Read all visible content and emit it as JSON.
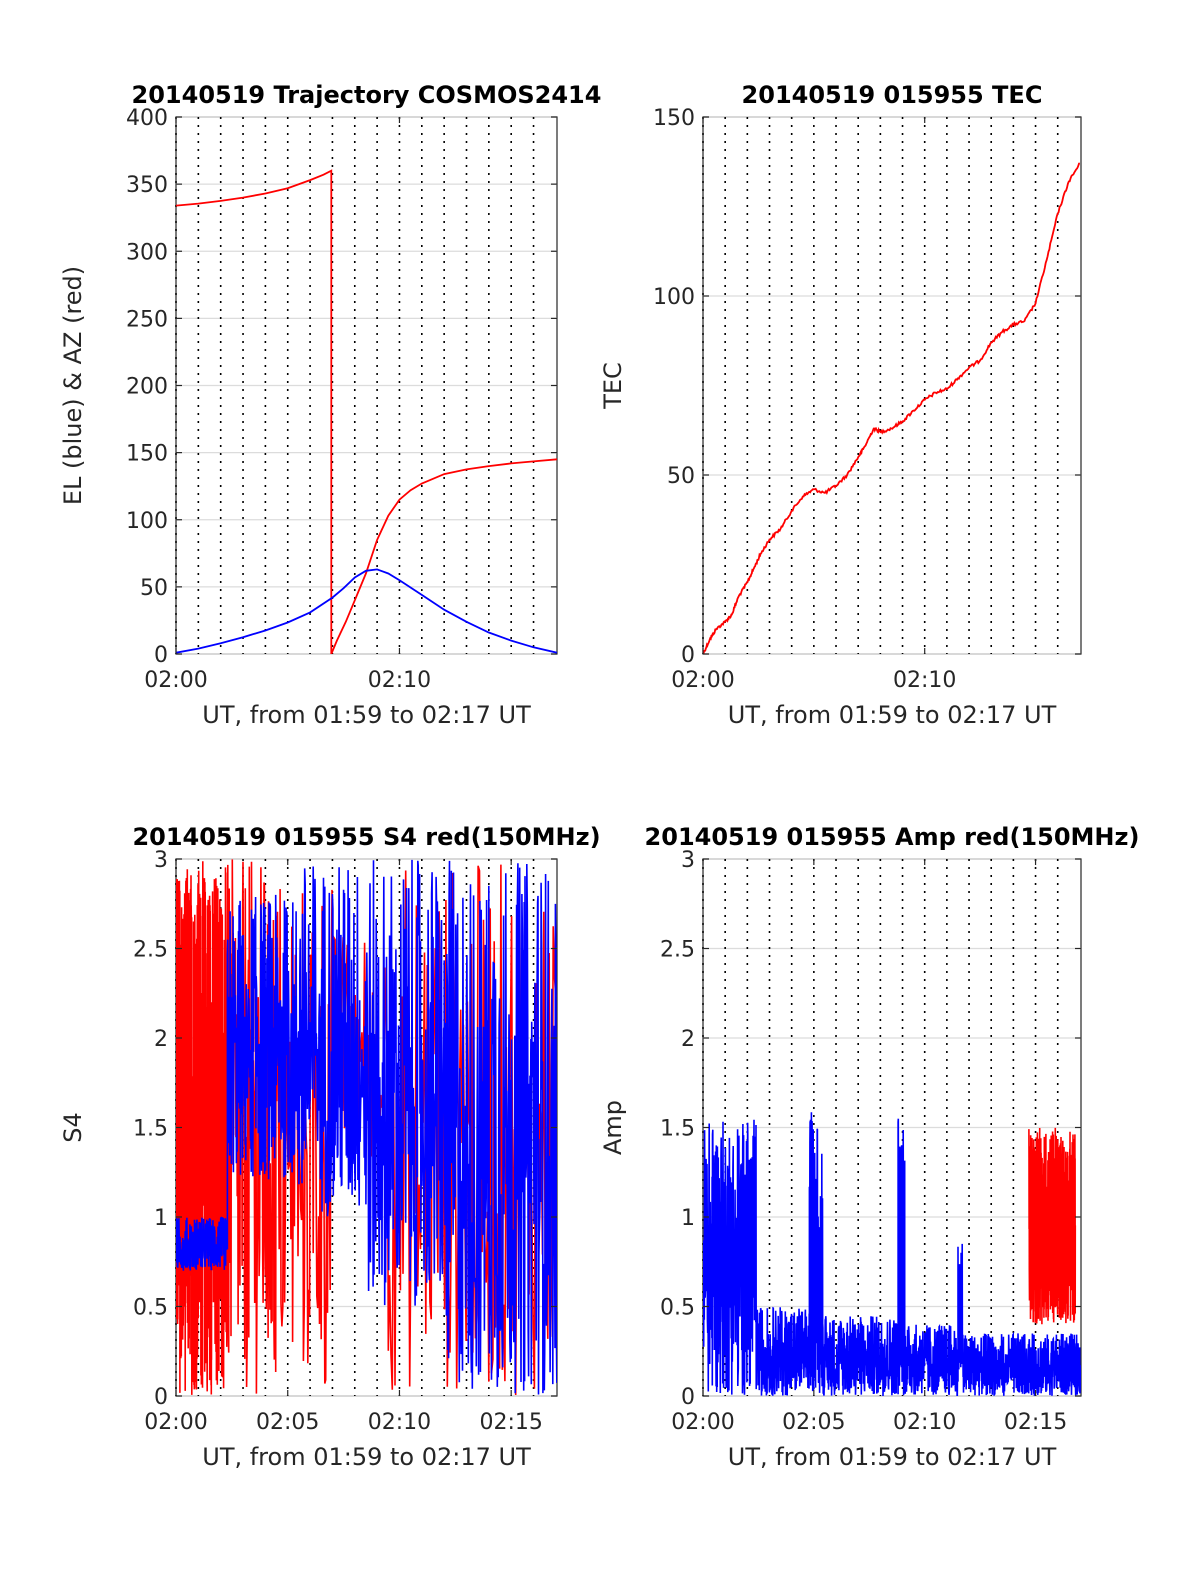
{
  "colors": {
    "red": "#ff0000",
    "blue": "#0000ff"
  },
  "chart_data": [
    {
      "id": "trajectory",
      "type": "line",
      "title": "20140519 Trajectory COSMOS2414",
      "xlabel": "UT, from 01:59 to 02:17 UT",
      "ylabel": "EL (blue) & AZ (red)",
      "xlim": [
        0,
        17.05
      ],
      "ylim": [
        0,
        400
      ],
      "xticks": [
        {
          "v": 0,
          "label": "02:00"
        },
        {
          "v": 10,
          "label": "02:10"
        }
      ],
      "yticks": [
        0,
        50,
        100,
        150,
        200,
        250,
        300,
        350,
        400
      ],
      "dotted_x": [
        0,
        1,
        2,
        3,
        4,
        5,
        6,
        7,
        8,
        9,
        10,
        11,
        12,
        13,
        14,
        15,
        16
      ],
      "series": [
        {
          "color": "#ff0000",
          "kind": "line",
          "x": [
            0,
            1,
            2,
            3,
            4,
            5,
            6,
            6.6,
            6.95,
            6.95,
            7.2,
            7.6,
            8,
            8.5,
            9,
            9.5,
            10,
            10.5,
            11,
            12,
            13,
            14,
            15,
            16,
            17.05
          ],
          "y": [
            334,
            335.5,
            337.5,
            340,
            343,
            347,
            353,
            357,
            360,
            0,
            10,
            24,
            40,
            60,
            85,
            103,
            115,
            122,
            127,
            134,
            137.5,
            140,
            142,
            143.5,
            145
          ]
        },
        {
          "color": "#0000ff",
          "kind": "line",
          "x": [
            0,
            1,
            2,
            3,
            4,
            5,
            6,
            7,
            7.5,
            8,
            8.5,
            9,
            9.5,
            10,
            11,
            12,
            13,
            14,
            15,
            16,
            17.05
          ],
          "y": [
            1,
            4,
            8,
            12.5,
            17.5,
            23.5,
            31,
            42,
            49,
            57,
            62,
            63,
            60,
            55,
            44,
            33,
            24,
            16,
            10,
            5,
            1
          ]
        }
      ]
    },
    {
      "id": "tec",
      "type": "line",
      "title": "20140519 015955 TEC",
      "xlabel": "UT, from 01:59 to 02:17 UT",
      "ylabel": "TEC",
      "xlim": [
        0,
        17.05
      ],
      "ylim": [
        0,
        150
      ],
      "xticks": [
        {
          "v": 0,
          "label": "02:00"
        },
        {
          "v": 10,
          "label": "02:10"
        }
      ],
      "yticks": [
        0,
        50,
        100,
        150
      ],
      "dotted_x": [
        0,
        1,
        2,
        3,
        4,
        5,
        6,
        7,
        8,
        9,
        10,
        11,
        12,
        13,
        14,
        15,
        16
      ],
      "series": [
        {
          "color": "#ff0000",
          "kind": "line",
          "x": [
            0,
            0.3,
            0.6,
            1,
            1.3,
            1.6,
            2,
            2.3,
            2.6,
            3,
            3.5,
            4,
            4.5,
            5,
            5.5,
            6,
            6.5,
            7,
            7.3,
            7.7,
            8,
            8.5,
            9,
            9.5,
            10,
            10.5,
            11,
            11.5,
            12,
            12.5,
            13,
            13.5,
            14,
            14.5,
            15,
            15.5,
            16,
            16.5,
            17
          ],
          "y": [
            0,
            4,
            7,
            9,
            11,
            16,
            20,
            24,
            28,
            32,
            35,
            40,
            44,
            46,
            45,
            47,
            50,
            55,
            58,
            63,
            62,
            63,
            65,
            68,
            71,
            73,
            74,
            77,
            80,
            82,
            87,
            90,
            92,
            93,
            98,
            110,
            123,
            132,
            137
          ]
        }
      ]
    },
    {
      "id": "s4",
      "type": "line",
      "title": "20140519 015955 S4 red(150MHz)",
      "xlabel": "UT, from 01:59 to 02:17 UT",
      "ylabel": "S4",
      "xlim": [
        0,
        17.05
      ],
      "ylim": [
        0,
        3
      ],
      "xticks": [
        {
          "v": 0,
          "label": "02:00"
        },
        {
          "v": 5,
          "label": "02:05"
        },
        {
          "v": 10,
          "label": "02:10"
        },
        {
          "v": 15,
          "label": "02:15"
        }
      ],
      "yticks": [
        0,
        0.5,
        1,
        1.5,
        2,
        2.5,
        3
      ],
      "dotted_x": [
        0,
        1,
        2,
        3,
        4,
        5,
        6,
        7,
        8,
        9,
        10,
        11,
        12,
        13,
        14,
        15,
        16
      ],
      "series": [
        {
          "color": "#ff0000",
          "kind": "noise",
          "segments": [
            {
              "x0": 0,
              "x1": 2.3,
              "lo": 0,
              "hi": 3,
              "dx": 0.005
            },
            {
              "x0": 2.3,
              "x1": 4.5,
              "lo": 0,
              "hi": 3,
              "dx": 0.02
            },
            {
              "x0": 4.5,
              "x1": 7,
              "lo": 0,
              "hi": 3,
              "dx": 0.04
            },
            {
              "x0": 7,
              "x1": 9.5,
              "lo": 1.3,
              "hi": 2.6,
              "dx": 0.06
            },
            {
              "x0": 9.5,
              "x1": 11,
              "lo": 0,
              "hi": 3,
              "dx": 0.06
            },
            {
              "x0": 11,
              "x1": 17.05,
              "lo": 0,
              "hi": 3,
              "dx": 0.06
            }
          ]
        },
        {
          "color": "#0000ff",
          "kind": "noise",
          "segments": [
            {
              "x0": 0,
              "x1": 2.3,
              "lo": 0.7,
              "hi": 1.0,
              "dx": 0.01
            },
            {
              "x0": 2.3,
              "x1": 5.5,
              "lo": 1.2,
              "hi": 2.8,
              "dx": 0.015
            },
            {
              "x0": 5.5,
              "x1": 8.5,
              "lo": 1.0,
              "hi": 3,
              "dx": 0.02
            },
            {
              "x0": 8.5,
              "x1": 12,
              "lo": 0.5,
              "hi": 3,
              "dx": 0.02
            },
            {
              "x0": 12,
              "x1": 17.05,
              "lo": 0,
              "hi": 3,
              "dx": 0.02
            }
          ]
        }
      ]
    },
    {
      "id": "amp",
      "type": "line",
      "title": "20140519 015955 Amp red(150MHz)",
      "xlabel": "UT, from 01:59 to 02:17 UT",
      "ylabel": "Amp",
      "xlim": [
        0,
        17.05
      ],
      "ylim": [
        0,
        3
      ],
      "xticks": [
        {
          "v": 0,
          "label": "02:00"
        },
        {
          "v": 5,
          "label": "02:05"
        },
        {
          "v": 10,
          "label": "02:10"
        },
        {
          "v": 15,
          "label": "02:15"
        }
      ],
      "yticks": [
        0,
        0.5,
        1,
        1.5,
        2,
        2.5,
        3
      ],
      "dotted_x": [
        0,
        1,
        2,
        3,
        4,
        5,
        6,
        7,
        8,
        9,
        10,
        11,
        12,
        13,
        14,
        15,
        16
      ],
      "series": [
        {
          "color": "#ff0000",
          "kind": "noise",
          "segments": [
            {
              "x0": 14.7,
              "x1": 16.8,
              "lo": 0.4,
              "hi": 1.5,
              "dx": 0.005
            }
          ]
        },
        {
          "color": "#0000ff",
          "kind": "noise",
          "segments": [
            {
              "x0": 0,
              "x1": 2.4,
              "lo": 0,
              "hi": 1.55,
              "dx": 0.01
            },
            {
              "x0": 2.4,
              "x1": 4.8,
              "lo": 0,
              "hi": 0.5,
              "dx": 0.01
            },
            {
              "x0": 4.8,
              "x1": 5.4,
              "lo": 0,
              "hi": 1.6,
              "dx": 0.01
            },
            {
              "x0": 5.4,
              "x1": 8.8,
              "lo": 0,
              "hi": 0.45,
              "dx": 0.01
            },
            {
              "x0": 8.8,
              "x1": 9.1,
              "lo": 0,
              "hi": 1.65,
              "dx": 0.01
            },
            {
              "x0": 9.1,
              "x1": 11.5,
              "lo": 0,
              "hi": 0.4,
              "dx": 0.01
            },
            {
              "x0": 11.5,
              "x1": 11.7,
              "lo": 0,
              "hi": 0.9,
              "dx": 0.01
            },
            {
              "x0": 11.7,
              "x1": 17.05,
              "lo": 0,
              "hi": 0.35,
              "dx": 0.01
            }
          ]
        }
      ]
    }
  ]
}
